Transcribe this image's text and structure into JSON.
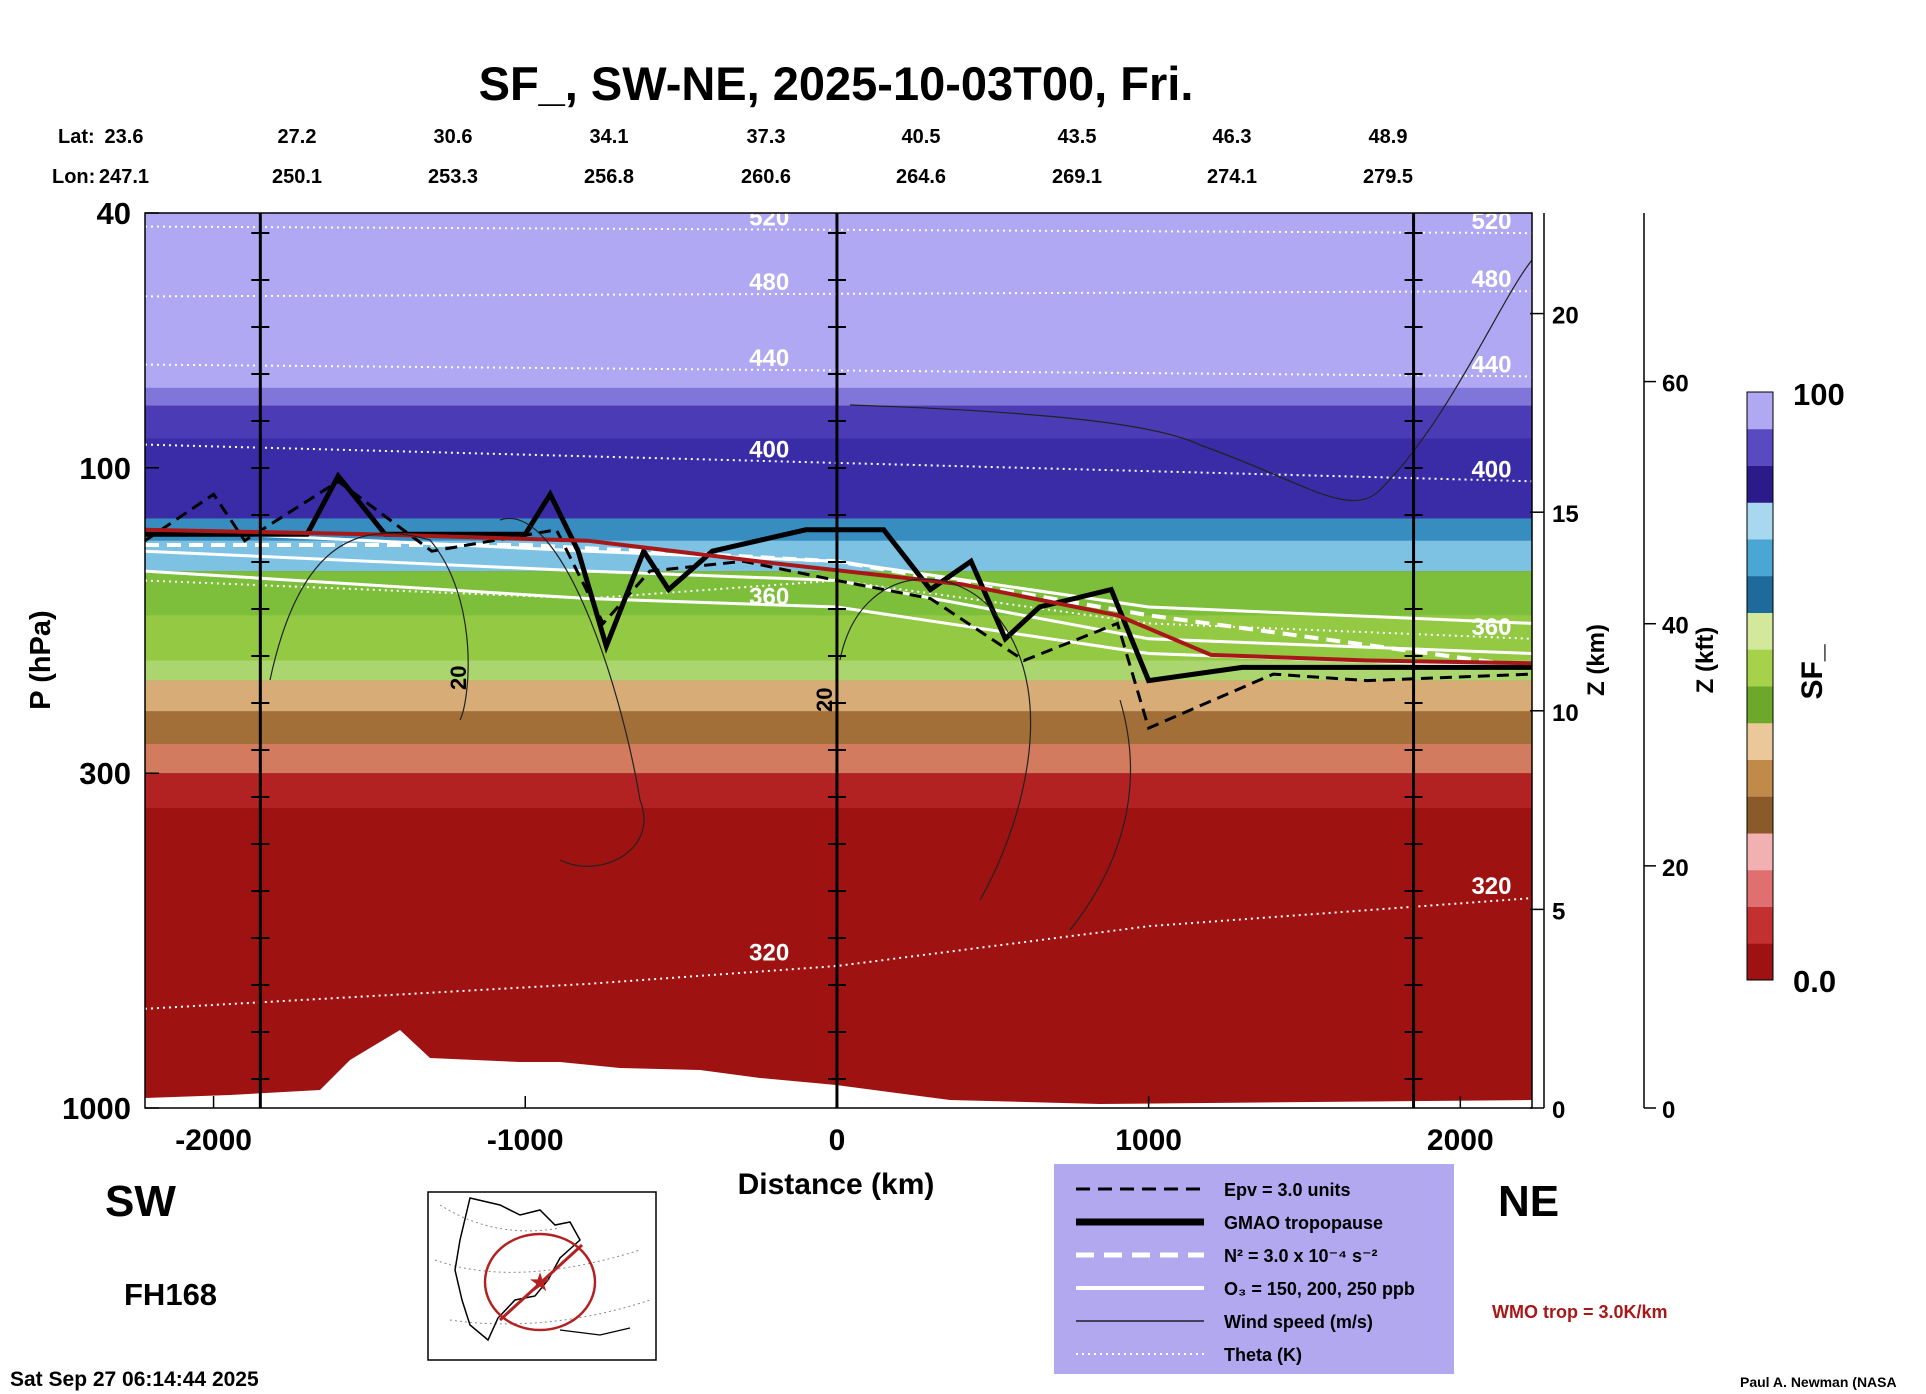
{
  "chart_data": {
    "type": "heatmap",
    "title": "SF_, SW-NE, 2025-10-03T00, Fri.",
    "xlabel": "Distance (km)",
    "ylabel": "P (hPa)",
    "right_axis_km_label": "Z (km)",
    "right_axis_kft_label": "Z (kft)",
    "colorbar_label": "SF_",
    "xlim": [
      -2220,
      2230
    ],
    "ylim": [
      1000,
      40
    ],
    "y_scale": "log",
    "x_ticks": [
      -2000,
      -1000,
      0,
      1000,
      2000
    ],
    "y_ticks": [
      40,
      100,
      300,
      1000
    ],
    "z_km_ticks": [
      0,
      5,
      10,
      15,
      20
    ],
    "z_kft_ticks": [
      0,
      20,
      40,
      60
    ],
    "colorbar_range": [
      0.0,
      100
    ],
    "colorbar_tick_labels": [
      "100",
      "0.0"
    ],
    "lat_label": "Lat:",
    "lon_label": "Lon:",
    "lat_values": [
      "23.6",
      "27.2",
      "30.6",
      "34.1",
      "37.3",
      "40.5",
      "43.5",
      "46.3",
      "48.9"
    ],
    "lon_values": [
      "247.1",
      "250.1",
      "253.3",
      "256.8",
      "260.6",
      "264.6",
      "269.1",
      "274.1",
      "279.5"
    ],
    "vertical_markers_km": [
      -1850,
      0,
      1850
    ],
    "wmo_tropopause": {
      "label": "WMO trop = 3.0K/km",
      "x": [
        -2220,
        -1500,
        -800,
        -200,
        400,
        900,
        1200,
        1700,
        2230
      ],
      "p": [
        125,
        127,
        130,
        141,
        152,
        170,
        196,
        200,
        202
      ]
    },
    "gmao_tropopause": {
      "x": [
        -2220,
        -1700,
        -1600,
        -1450,
        -1000,
        -920,
        -830,
        -740,
        -620,
        -540,
        -400,
        -100,
        0,
        150,
        300,
        430,
        540,
        650,
        880,
        1000,
        1300,
        1700,
        2230
      ],
      "p": [
        127,
        127,
        103,
        127,
        127,
        110,
        135,
        190,
        135,
        155,
        135,
        125,
        125,
        125,
        155,
        140,
        185,
        165,
        155,
        215,
        205,
        205,
        205
      ]
    },
    "theta_contours": [
      {
        "level": 520,
        "x": [
          -2220,
          2230
        ],
        "p": [
          42,
          43
        ]
      },
      {
        "level": 480,
        "x": [
          -2220,
          2230
        ],
        "p": [
          54,
          53
        ]
      },
      {
        "level": 440,
        "x": [
          -2220,
          2230
        ],
        "p": [
          69,
          72
        ]
      },
      {
        "level": 400,
        "x": [
          -2220,
          2230
        ],
        "p": [
          92,
          105
        ]
      },
      {
        "level": 360,
        "x": [
          -2220,
          -800,
          0,
          1000,
          2230
        ],
        "p": [
          150,
          160,
          150,
          175,
          185
        ]
      },
      {
        "level": 320,
        "x": [
          -2220,
          -800,
          0,
          1000,
          2230
        ],
        "p": [
          700,
          640,
          600,
          520,
          470
        ]
      }
    ],
    "colorbands_sf": [
      {
        "range": "80-100",
        "p_top": 40,
        "p_bottom": 80,
        "color": "#b0a8f2"
      },
      {
        "range": "60-80",
        "p_top": 80,
        "p_bottom": 120,
        "color": "#3a2ca6"
      },
      {
        "range": "40-60",
        "p_top": 120,
        "p_bottom": 145,
        "color": "#4aa6d2"
      },
      {
        "range": "30-40",
        "p_top": 145,
        "p_bottom": 215,
        "color": "#7dbf3a"
      },
      {
        "range": "15-30",
        "p_top": 215,
        "p_bottom": 300,
        "color": "#c08a4a"
      },
      {
        "range": "0-15",
        "p_top": 300,
        "p_bottom": 1000,
        "color": "#9e1212"
      }
    ],
    "legend": {
      "entries": [
        {
          "label": "Epv = 3.0 units",
          "style": "dashed-black"
        },
        {
          "label": "GMAO tropopause",
          "style": "thick-black"
        },
        {
          "label": "N² = 3.0 x 10⁻⁴ s⁻²",
          "style": "dashed-white"
        },
        {
          "label": "O₃ = 150, 200, 250 ppb",
          "style": "solid-white"
        },
        {
          "label": "Wind speed (m/s)",
          "style": "thin-black"
        },
        {
          "label": "Theta (K)",
          "style": "dotted-white"
        }
      ],
      "placement": "bottom-center",
      "background": "#b2a8f0"
    },
    "direction_left": "SW",
    "direction_right": "NE",
    "forecast_hour": "FH168",
    "wind_contour_labels": [
      "20",
      "20"
    ]
  },
  "footer": {
    "timestamp": "Sat Sep 27 06:14:44 2025",
    "credit": "Paul A. Newman (NASA"
  },
  "colors": {
    "wmo_trop": "#a81818",
    "colorbar": [
      "#9e1212",
      "#c23030",
      "#e07070",
      "#f2b0b0",
      "#8a5a2a",
      "#c08a4a",
      "#eac89a",
      "#6ea82a",
      "#a6d24a",
      "#d2e89a",
      "#1e6a9a",
      "#4aa6d2",
      "#a8d8f0",
      "#2a1a8a",
      "#5a4ac2",
      "#b0a8f2"
    ]
  }
}
